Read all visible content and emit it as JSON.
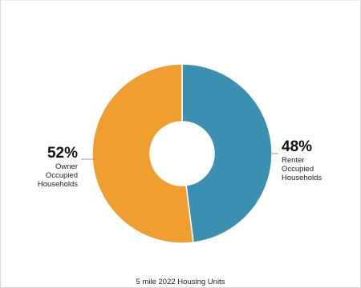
{
  "chart_data": {
    "type": "pie",
    "variant": "donut",
    "caption": "5 mile 2022 Housing Units",
    "slices": [
      {
        "name": "Renter Occupied Households",
        "value": 48,
        "value_label": "48%",
        "label_lines": [
          "Renter",
          "Occupied",
          "Households"
        ],
        "color": "#3b8fb0"
      },
      {
        "name": "Owner Occupied Households",
        "value": 52,
        "value_label": "52%",
        "label_lines": [
          "Owner",
          "Occupied",
          "Households"
        ],
        "color": "#f19e31"
      }
    ]
  }
}
